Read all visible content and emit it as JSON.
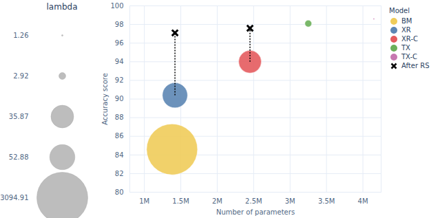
{
  "chart_data": {
    "type": "scatter",
    "xlabel": "Number of parameters",
    "ylabel": "Accuracy score",
    "size_label": "lambda",
    "legend_title": "Model",
    "xlim": [
      800000,
      4250000
    ],
    "xticks": [
      {
        "value": 1000000,
        "label": "1M"
      },
      {
        "value": 1500000,
        "label": "1.5M"
      },
      {
        "value": 2000000,
        "label": "2M"
      },
      {
        "value": 2500000,
        "label": "2.5M"
      },
      {
        "value": 3000000,
        "label": "3M"
      },
      {
        "value": 3500000,
        "label": "3.5M"
      },
      {
        "value": 4000000,
        "label": "4M"
      }
    ],
    "ylim": [
      80,
      100
    ],
    "yticks": [
      80,
      82,
      84,
      86,
      88,
      90,
      92,
      94,
      96,
      98,
      100
    ],
    "grid": true,
    "series": [
      {
        "name": "BM",
        "color": "#efcc5a",
        "marker": "circle",
        "x": [
          1380000
        ],
        "values": [
          84.6
        ],
        "lambda": [
          3094.91
        ]
      },
      {
        "name": "XR",
        "color": "#5c86b4",
        "marker": "circle",
        "x": [
          1420000
        ],
        "values": [
          90.4
        ],
        "lambda": [
          52.88
        ]
      },
      {
        "name": "XR-C",
        "color": "#e45b5e",
        "marker": "circle",
        "x": [
          2450000
        ],
        "values": [
          94.0
        ],
        "lambda": [
          35.87
        ]
      },
      {
        "name": "TX",
        "color": "#6cb05a",
        "marker": "circle",
        "x": [
          3250000
        ],
        "values": [
          98.1
        ],
        "lambda": [
          2.92
        ]
      },
      {
        "name": "TX-C",
        "color": "#c678b0",
        "marker": "circle",
        "x": [
          4150000
        ],
        "values": [
          98.6
        ],
        "lambda": [
          1.26
        ]
      },
      {
        "name": "After RS",
        "color": "#000000",
        "marker": "x",
        "x": [
          1420000,
          2450000
        ],
        "values": [
          97.1,
          97.6
        ]
      }
    ]
  }
}
